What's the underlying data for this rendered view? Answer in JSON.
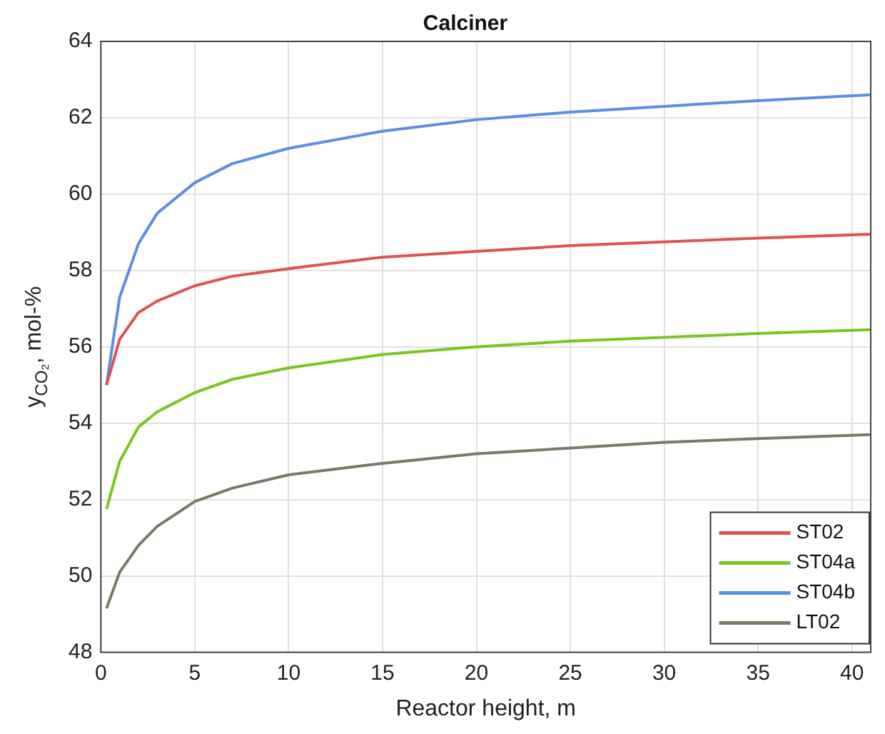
{
  "chart_data": {
    "type": "line",
    "title": "Calciner",
    "xlabel": "Reactor height, m",
    "ylabel": "y$_{CO₂}$, mol-%",
    "x": [
      0.3,
      1,
      2,
      3,
      5,
      7,
      10,
      15,
      20,
      25,
      30,
      35,
      41
    ],
    "series": [
      {
        "name": "ST02",
        "color": "#e05252",
        "values": [
          55.0,
          56.2,
          56.9,
          57.2,
          57.6,
          57.85,
          58.05,
          58.35,
          58.5,
          58.65,
          58.75,
          58.85,
          58.95
        ]
      },
      {
        "name": "ST04a",
        "color": "#7cc520",
        "values": [
          51.75,
          53.0,
          53.9,
          54.3,
          54.8,
          55.15,
          55.45,
          55.8,
          56.0,
          56.15,
          56.25,
          56.35,
          56.45
        ]
      },
      {
        "name": "ST04b",
        "color": "#5b8ee6",
        "values": [
          55.0,
          57.3,
          58.7,
          59.5,
          60.3,
          60.8,
          61.2,
          61.65,
          61.95,
          62.15,
          62.3,
          62.45,
          62.6
        ]
      },
      {
        "name": "LT02",
        "color": "#7a7a6a",
        "values": [
          49.15,
          50.1,
          50.8,
          51.3,
          51.95,
          52.3,
          52.65,
          52.95,
          53.2,
          53.35,
          53.5,
          53.6,
          53.7
        ]
      }
    ],
    "xlim": [
      0,
      41
    ],
    "xticks": [
      0,
      5,
      10,
      15,
      20,
      25,
      30,
      35,
      40
    ],
    "ylim": [
      48,
      64
    ],
    "yticks": [
      48,
      50,
      52,
      54,
      56,
      58,
      60,
      62,
      64
    ],
    "grid": true,
    "legend": "bottom right",
    "marker": "none",
    "line_style": "solid"
  }
}
